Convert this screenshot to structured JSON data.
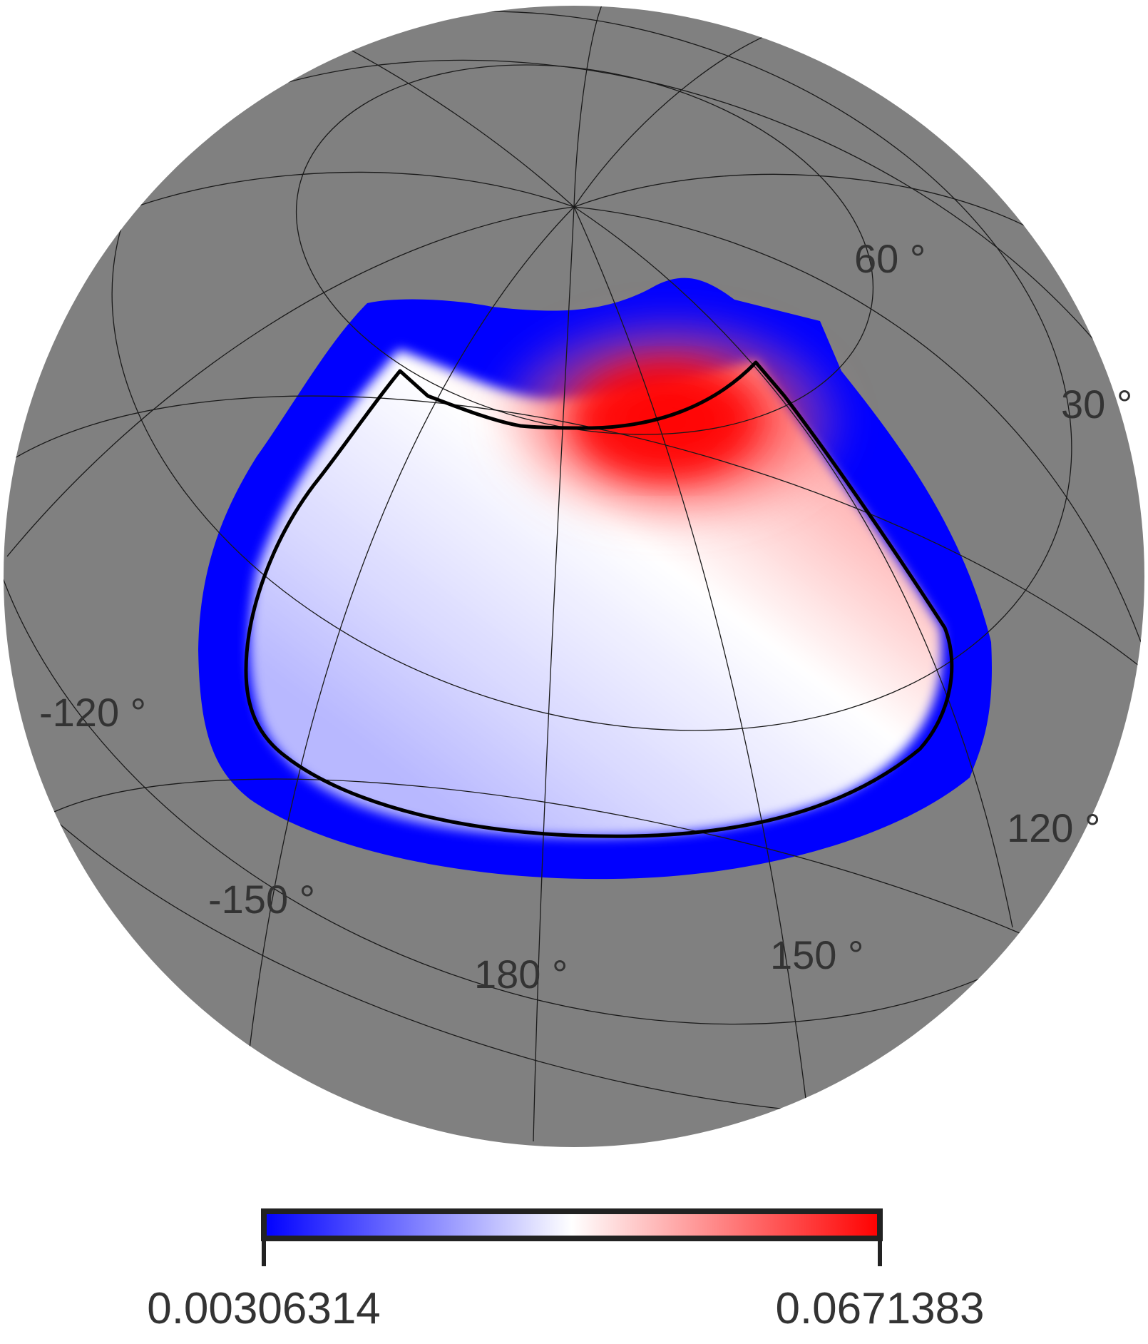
{
  "map": {
    "projection": "orthographic",
    "background_color": "#808080",
    "graticule_color": "#1a1a1a",
    "colormap": [
      "#0000ff",
      "#ffffff",
      "#ff0000"
    ],
    "footprint_outline_color": "#000000",
    "graticule_labels": {
      "lat_60": "60 °",
      "lat_30": "30 °",
      "lon_m120": "-120 °",
      "lon_m150": "-150 °",
      "lon_180": "180 °",
      "lon_150": "150 °",
      "lon_120": "120 °"
    }
  },
  "colorbar": {
    "min_label": "0.00306314",
    "max_label": "0.0671383",
    "min": 0.00306314,
    "max": 0.0671383,
    "colors": [
      "#0000ff",
      "#ffffff",
      "#ff0000"
    ],
    "frame_color": "#222222"
  }
}
